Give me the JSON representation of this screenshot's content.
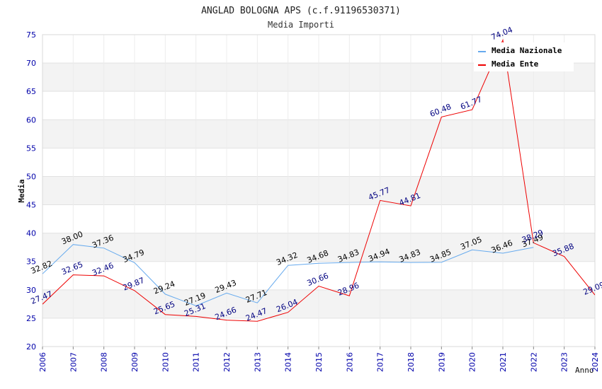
{
  "chart_data": {
    "type": "line",
    "title": "ANGLAD BOLOGNA APS (c.f.91196530371)",
    "subtitle": "Media Importi",
    "xlabel": "Anno",
    "ylabel": "Media",
    "ylim": [
      20,
      75
    ],
    "ytick_step": 5,
    "ytick_labels": [
      "20",
      "25",
      "30",
      "35",
      "40",
      "45",
      "50",
      "55",
      "60",
      "65",
      "70",
      "75"
    ],
    "categories": [
      "2006",
      "2007",
      "2008",
      "2009",
      "2010",
      "2011",
      "2012",
      "2013",
      "2014",
      "2015",
      "2016",
      "2017",
      "2018",
      "2019",
      "2020",
      "2021",
      "2022",
      "2023",
      "2024"
    ],
    "legend_position": "top-right",
    "series": [
      {
        "name": "Media Nazionale",
        "color": "#66aaee",
        "label_color": "#000000",
        "values": [
          32.82,
          38.0,
          37.36,
          34.79,
          29.24,
          27.19,
          29.43,
          27.71,
          34.32,
          34.68,
          34.83,
          34.94,
          34.83,
          34.85,
          37.05,
          36.46,
          37.49,
          null,
          null
        ],
        "labels": [
          "32.82",
          "38.00",
          "37.36",
          "34.79",
          "29.24",
          "27.19",
          "29.43",
          "27.71",
          "34.32",
          "34.68",
          "34.83",
          "34.94",
          "34.83",
          "34.85",
          "37.05",
          "36.46",
          "37.49",
          null,
          null
        ]
      },
      {
        "name": "Media Ente",
        "color": "#ee0000",
        "label_color": "#000080",
        "values": [
          27.47,
          32.65,
          32.46,
          29.87,
          25.65,
          25.31,
          24.66,
          24.47,
          26.04,
          30.66,
          28.96,
          45.77,
          44.81,
          60.48,
          61.77,
          74.04,
          38.29,
          35.88,
          29.09
        ],
        "labels": [
          "27.47",
          "32.65",
          "32.46",
          "29.87",
          "25.65",
          "25.31",
          "24.66",
          "24.47",
          "26.04",
          "30.66",
          "28.96",
          "45.77",
          "44.81",
          "60.48",
          "61.77",
          "74.04",
          "38.29",
          "35.88",
          "29.09"
        ]
      }
    ]
  }
}
